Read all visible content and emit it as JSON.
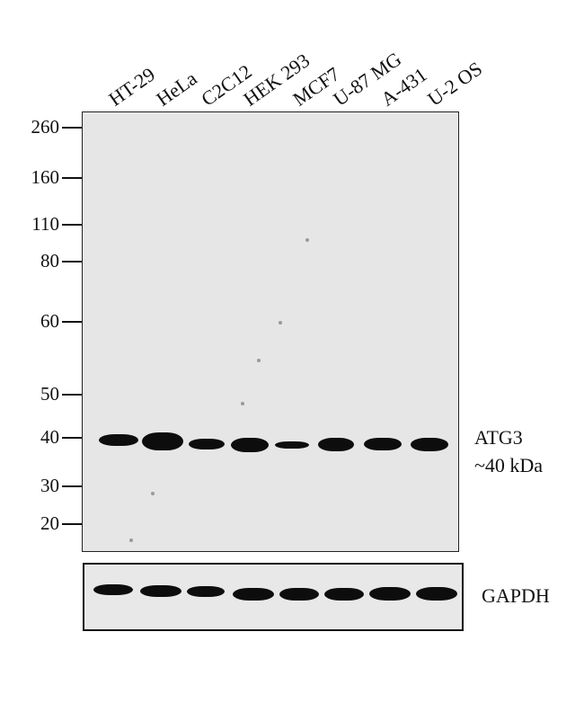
{
  "lanes": [
    "HT-29",
    "HeLa",
    "C2C12",
    "HEK 293",
    "MCF7",
    "U-87 MG",
    "A-431",
    "U-2 OS"
  ],
  "markers": [
    "260",
    "160",
    "110",
    "80",
    "60",
    "50",
    "40",
    "30",
    "20"
  ],
  "target": {
    "name": "ATG3",
    "size": "~40 kDa"
  },
  "loading_control": "GAPDH"
}
